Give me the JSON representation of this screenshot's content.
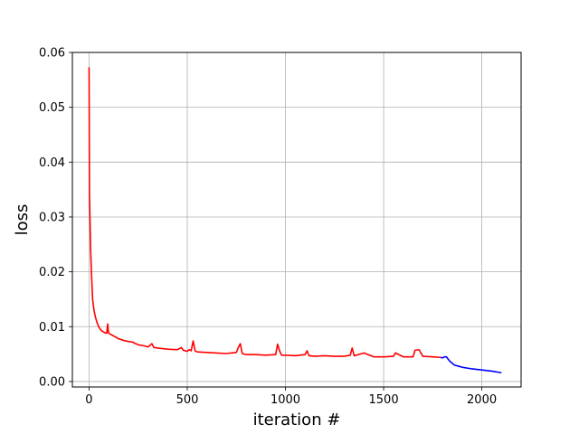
{
  "chart_data": {
    "type": "line",
    "title": "",
    "xlabel": "iteration #",
    "ylabel": "loss",
    "xlim": [
      -85,
      2200
    ],
    "ylim": [
      -0.001,
      0.06
    ],
    "xticks": [
      0,
      500,
      1000,
      1500,
      2000
    ],
    "xtick_labels": [
      "0",
      "500",
      "1000",
      "1500",
      "2000"
    ],
    "yticks": [
      0.0,
      0.01,
      0.02,
      0.03,
      0.04,
      0.05,
      0.06
    ],
    "ytick_labels": [
      "0.00",
      "0.01",
      "0.02",
      "0.03",
      "0.04",
      "0.05",
      "0.06"
    ],
    "grid": true,
    "legend": "none",
    "series": [
      {
        "color": "#ff0000",
        "x": [
          0,
          2,
          4,
          8,
          12,
          18,
          25,
          32,
          40,
          50,
          60,
          70,
          80,
          90,
          95,
          98,
          100,
          105,
          115,
          130,
          150,
          175,
          200,
          220,
          250,
          280,
          300,
          320,
          330,
          350,
          400,
          450,
          470,
          480,
          500,
          510,
          520,
          530,
          540,
          550,
          600,
          650,
          700,
          750,
          760,
          770,
          780,
          800,
          850,
          900,
          950,
          960,
          970,
          980,
          1000,
          1050,
          1100,
          1110,
          1120,
          1150,
          1200,
          1250,
          1300,
          1330,
          1340,
          1350,
          1400,
          1450,
          1500,
          1550,
          1560,
          1600,
          1650,
          1660,
          1680,
          1700,
          1750,
          1790
        ],
        "values": [
          0.0573,
          0.034,
          0.031,
          0.024,
          0.02,
          0.015,
          0.013,
          0.0118,
          0.0108,
          0.0099,
          0.0094,
          0.0091,
          0.0089,
          0.0088,
          0.0105,
          0.0092,
          0.0088,
          0.0087,
          0.0085,
          0.0082,
          0.0078,
          0.0075,
          0.0073,
          0.0072,
          0.0067,
          0.0065,
          0.0063,
          0.0069,
          0.0062,
          0.0061,
          0.0059,
          0.0058,
          0.0062,
          0.0057,
          0.0055,
          0.0058,
          0.0056,
          0.0074,
          0.0056,
          0.0054,
          0.0053,
          0.0052,
          0.0051,
          0.0053,
          0.0062,
          0.0069,
          0.0051,
          0.0049,
          0.0049,
          0.0048,
          0.0049,
          0.0068,
          0.0056,
          0.0048,
          0.0048,
          0.0047,
          0.0049,
          0.0056,
          0.0047,
          0.0046,
          0.0047,
          0.0046,
          0.0046,
          0.0048,
          0.0061,
          0.0047,
          0.0052,
          0.0045,
          0.0045,
          0.0046,
          0.0052,
          0.0045,
          0.0045,
          0.0057,
          0.0058,
          0.0046,
          0.0045,
          0.0044
        ]
      },
      {
        "color": "#0000ff",
        "x": [
          1790,
          1800,
          1810,
          1820,
          1830,
          1840,
          1850,
          1860,
          1880,
          1900,
          1950,
          2000,
          2050,
          2100
        ],
        "values": [
          0.0044,
          0.0043,
          0.0045,
          0.0045,
          0.004,
          0.0036,
          0.0033,
          0.003,
          0.0028,
          0.0026,
          0.0023,
          0.0021,
          0.0019,
          0.0016
        ]
      }
    ]
  }
}
